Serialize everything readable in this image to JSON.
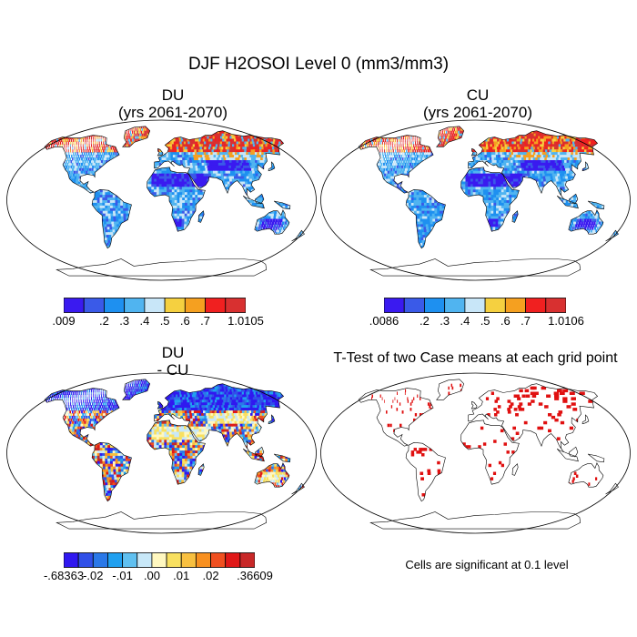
{
  "title": "DJF H2OSOI Level 0 (mm3/mm3)",
  "panels": [
    {
      "id": "du",
      "title_line1": "DU",
      "title_line2": "(yrs 2061-2070)"
    },
    {
      "id": "cu",
      "title_line1": "CU",
      "title_line2": "(yrs 2061-2070)"
    },
    {
      "id": "diff",
      "title_line1": "DU",
      "title_line2": "- CU"
    },
    {
      "id": "ttest",
      "title_line1": "T-Test of two Case means at each grid point",
      "title_line2": ""
    }
  ],
  "colorbars": {
    "du": {
      "colors": [
        "#3a1af0",
        "#3a5ae8",
        "#1e90f0",
        "#50b4f0",
        "#c8e6f8",
        "#f5d040",
        "#f5a020",
        "#f02020",
        "#d83030"
      ],
      "labels": [
        ".009",
        ".2",
        ".3",
        ".4",
        ".5",
        ".6",
        ".7",
        "1.0105"
      ]
    },
    "cu": {
      "colors": [
        "#3a1af0",
        "#3a5ae8",
        "#1e90f0",
        "#50b4f0",
        "#c8e6f8",
        "#f5d040",
        "#f5a020",
        "#f02020",
        "#d83030"
      ],
      "labels": [
        ".0086",
        ".2",
        ".3",
        ".4",
        ".5",
        ".6",
        ".7",
        "1.0106"
      ]
    },
    "diff": {
      "colors": [
        "#3018f0",
        "#3050e8",
        "#2a78e8",
        "#20a0f0",
        "#60c0f0",
        "#c8e8f8",
        "#fff8c0",
        "#f8e060",
        "#f8c040",
        "#f89020",
        "#f05020",
        "#e01818",
        "#c82828"
      ],
      "labels": [
        "-.68363",
        "-.02",
        "-.01",
        ".00",
        ".01",
        ".02",
        ".36609"
      ]
    }
  },
  "significance_note": "Cells are significant at 0.1 level",
  "colors": {
    "dry": "#3a1af0",
    "mid": "#50b4f0",
    "wet": "#f02020",
    "significant": "#e01010",
    "coast": "#000000"
  }
}
